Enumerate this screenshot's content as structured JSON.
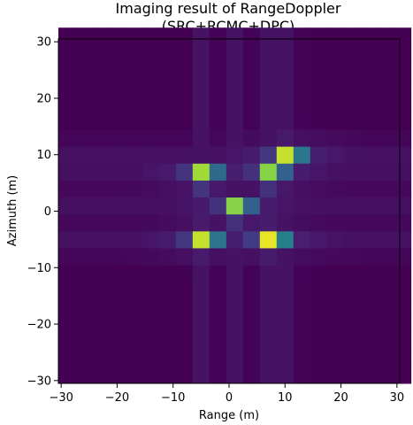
{
  "chart_data": {
    "type": "heatmap",
    "title": "Imaging result of RangeDoppler",
    "subtitle": "(SRC+RCMC+DPC)",
    "xlabel": "Range (m)",
    "ylabel": "Azimuth (m)",
    "xlim": [
      -30.5,
      30.5
    ],
    "ylim": [
      -30.5,
      30.5
    ],
    "xticks": [
      -30,
      -20,
      -10,
      0,
      10,
      20,
      30
    ],
    "yticks": [
      30,
      20,
      10,
      0,
      -10,
      -20,
      -30
    ],
    "xtick_labels": [
      "−30",
      "−20",
      "−10",
      "0",
      "10",
      "20",
      "30"
    ],
    "ytick_labels": [
      "30",
      "20",
      "10",
      "0",
      "−10",
      "−20",
      "−30"
    ],
    "colormap": "viridis",
    "grid": false,
    "cell_size_m": 3,
    "background_level": 0.0,
    "targets": [
      {
        "range_m": -4.5,
        "azimuth_m": 6.5,
        "intensity": 0.95
      },
      {
        "range_m": 7.5,
        "azimuth_m": 6.5,
        "intensity": 0.9
      },
      {
        "range_m": 10.5,
        "azimuth_m": 10.0,
        "intensity": 0.95
      },
      {
        "range_m": 1.5,
        "azimuth_m": 0.5,
        "intensity": 0.9
      },
      {
        "range_m": -4.5,
        "azimuth_m": -5.0,
        "intensity": 0.95
      },
      {
        "range_m": 7.5,
        "azimuth_m": -5.0,
        "intensity": 1.0
      }
    ]
  }
}
